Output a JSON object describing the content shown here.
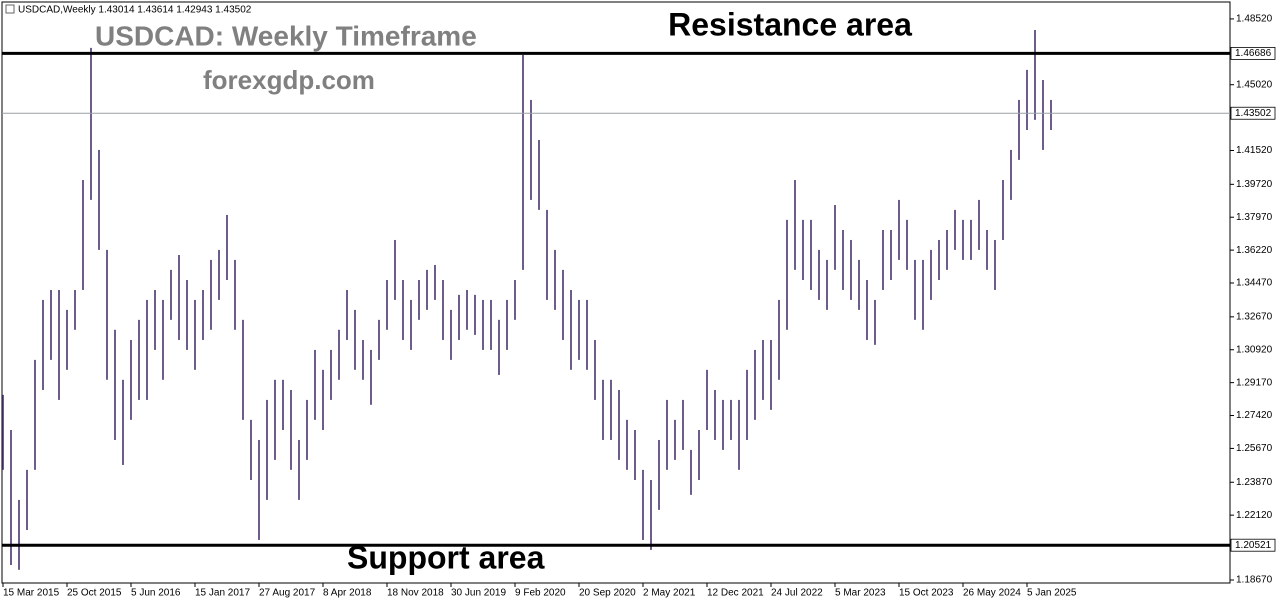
{
  "chart_data": {
    "type": "range-bars",
    "title": "USDCAD,Weekly  1.43014 1.43614 1.42943 1.43502",
    "annotations": {
      "resistance": "Resistance area",
      "support": "Support area",
      "watermark": "USDCAD: Weekly Timeframe",
      "site": "forexgdp.com"
    },
    "color": "#4a3470",
    "categories": [
      "15 Mar 2015",
      null,
      null,
      null,
      null,
      null,
      null,
      null,
      "25 Oct 2015",
      null,
      null,
      null,
      null,
      null,
      null,
      null,
      "5 Jun 2016",
      null,
      null,
      null,
      null,
      null,
      null,
      null,
      "15 Jan 2017",
      null,
      null,
      null,
      null,
      null,
      null,
      null,
      "27 Aug 2017",
      null,
      null,
      null,
      null,
      null,
      null,
      null,
      "8 Apr 2018",
      null,
      null,
      null,
      null,
      null,
      null,
      null,
      "18 Nov 2018",
      null,
      null,
      null,
      null,
      null,
      null,
      null,
      "30 Jun 2019",
      null,
      null,
      null,
      null,
      null,
      null,
      null,
      "9 Feb 2020",
      null,
      null,
      null,
      null,
      null,
      null,
      null,
      "20 Sep 2020",
      null,
      null,
      null,
      null,
      null,
      null,
      null,
      "2 May 2021",
      null,
      null,
      null,
      null,
      null,
      null,
      null,
      "12 Dec 2021",
      null,
      null,
      null,
      null,
      null,
      null,
      null,
      "24 Jul 2022",
      null,
      null,
      null,
      null,
      null,
      null,
      null,
      "5 Mar 2023",
      null,
      null,
      null,
      null,
      null,
      null,
      null,
      "15 Oct 2023",
      null,
      null,
      null,
      null,
      null,
      null,
      null,
      "26 May 2024",
      null,
      null,
      null,
      null,
      null,
      null,
      null,
      "5 Jan 2025",
      null,
      null,
      null
    ],
    "high": [
      1.2852,
      1.2665,
      1.2293,
      1.2453,
      1.3038,
      1.3357,
      1.341,
      1.341,
      1.3304,
      1.341,
      1.3995,
      1.4698,
      1.4155,
      1.3623,
      1.3198,
      1.2932,
      1.3144,
      1.3251,
      1.3357,
      1.341,
      1.3357,
      1.3517,
      1.3596,
      1.3463,
      1.3357,
      1.341,
      1.357,
      1.3623,
      1.3809,
      1.357,
      1.3251,
      1.2719,
      1.2612,
      1.2825,
      1.2932,
      1.2932,
      1.2878,
      1.2612,
      1.2825,
      1.3091,
      1.2985,
      1.3091,
      1.3198,
      1.341,
      1.3304,
      1.3144,
      1.3091,
      1.3251,
      1.3463,
      1.3676,
      1.3463,
      1.3357,
      1.3463,
      1.3517,
      1.3543,
      1.3463,
      1.3304,
      1.3384,
      1.341,
      1.3384,
      1.3357,
      1.3357,
      1.3251,
      1.3357,
      1.3463,
      1.466,
      1.4421,
      1.4208,
      1.3836,
      1.3623,
      1.3517,
      1.341,
      1.3357,
      1.3357,
      1.3144,
      1.2932,
      1.2932,
      1.2878,
      1.2719,
      1.2665,
      1.2453,
      1.2399,
      1.2612,
      1.2825,
      1.2719,
      1.2825,
      1.2559,
      1.2665,
      1.2985,
      1.2878,
      1.2825,
      1.2825,
      1.2825,
      1.2985,
      1.3091,
      1.3144,
      1.3144,
      1.3357,
      1.3783,
      1.3995,
      1.3783,
      1.3783,
      1.3623,
      1.357,
      1.3862,
      1.3729,
      1.3676,
      1.357,
      1.3463,
      1.3357,
      1.3729,
      1.3729,
      1.3889,
      1.3783,
      1.357,
      1.357,
      1.3623,
      1.3676,
      1.3729,
      1.3836,
      1.3783,
      1.3783,
      1.3889,
      1.3729,
      1.3676,
      1.3995,
      1.4155,
      1.4421,
      1.4581,
      1.4793,
      1.4527,
      1.4421
    ],
    "low": [
      1.2453,
      1.1947,
      1.1921,
      1.2133,
      1.2453,
      1.2878,
      1.3038,
      1.2825,
      1.2985,
      1.3198,
      1.341,
      1.3889,
      1.3623,
      1.2932,
      1.2612,
      1.2479,
      1.2719,
      1.2825,
      1.2825,
      1.3091,
      1.2932,
      1.3251,
      1.3144,
      1.3091,
      1.2985,
      1.3144,
      1.3198,
      1.3357,
      1.3463,
      1.3198,
      1.2719,
      1.2399,
      1.208,
      1.2293,
      1.2506,
      1.2665,
      1.2453,
      1.2293,
      1.2506,
      1.2719,
      1.2665,
      1.2825,
      1.2932,
      1.3144,
      1.2985,
      1.2932,
      1.2799,
      1.3038,
      1.3198,
      1.3357,
      1.3144,
      1.3091,
      1.3251,
      1.3304,
      1.3357,
      1.3144,
      1.3038,
      1.3144,
      1.3198,
      1.3171,
      1.3091,
      1.3091,
      1.2958,
      1.3091,
      1.3251,
      1.3517,
      1.3889,
      1.3836,
      1.3357,
      1.3304,
      1.3144,
      1.2985,
      1.3038,
      1.2985,
      1.2825,
      1.2612,
      1.2612,
      1.2506,
      1.2453,
      1.2399,
      1.208,
      1.2027,
      1.224,
      1.2453,
      1.2506,
      1.2559,
      1.232,
      1.2399,
      1.2665,
      1.2612,
      1.2559,
      1.2612,
      1.2453,
      1.2612,
      1.2719,
      1.2825,
      1.2772,
      1.2932,
      1.3198,
      1.3517,
      1.3463,
      1.341,
      1.3357,
      1.3304,
      1.3517,
      1.341,
      1.3357,
      1.3304,
      1.3144,
      1.3118,
      1.341,
      1.3463,
      1.357,
      1.3517,
      1.3251,
      1.3198,
      1.3357,
      1.3463,
      1.3517,
      1.3623,
      1.357,
      1.357,
      1.3623,
      1.3517,
      1.341,
      1.3676,
      1.3889,
      1.4102,
      1.4261,
      1.4315,
      1.4155,
      1.4261
    ],
    "ylim": [
      1.1851,
      1.4942
    ],
    "yticks": [
      {
        "value": 1.4852,
        "label": "1.48520"
      },
      {
        "value": 1.4502,
        "label": "1.45020"
      },
      {
        "value": 1.4152,
        "label": "1.41520"
      },
      {
        "value": 1.3972,
        "label": "1.39720"
      },
      {
        "value": 1.3797,
        "label": "1.37970"
      },
      {
        "value": 1.3622,
        "label": "1.36220"
      },
      {
        "value": 1.3447,
        "label": "1.34470"
      },
      {
        "value": 1.3267,
        "label": "1.32670"
      },
      {
        "value": 1.3092,
        "label": "1.30920"
      },
      {
        "value": 1.2917,
        "label": "1.29170"
      },
      {
        "value": 1.2742,
        "label": "1.27420"
      },
      {
        "value": 1.2567,
        "label": "1.25670"
      },
      {
        "value": 1.2387,
        "label": "1.23870"
      },
      {
        "value": 1.2212,
        "label": "1.22120"
      },
      {
        "value": 1.1867,
        "label": "1.18670"
      }
    ],
    "price_lines": [
      {
        "value": 1.46686,
        "label": "1.46686",
        "color": "#000000",
        "style": "thick"
      },
      {
        "value": 1.43502,
        "label": "1.43502",
        "color": "#9aa0a6",
        "style": "thin"
      },
      {
        "value": 1.20521,
        "label": "1.20521",
        "color": "#000000",
        "style": "thick"
      }
    ]
  }
}
